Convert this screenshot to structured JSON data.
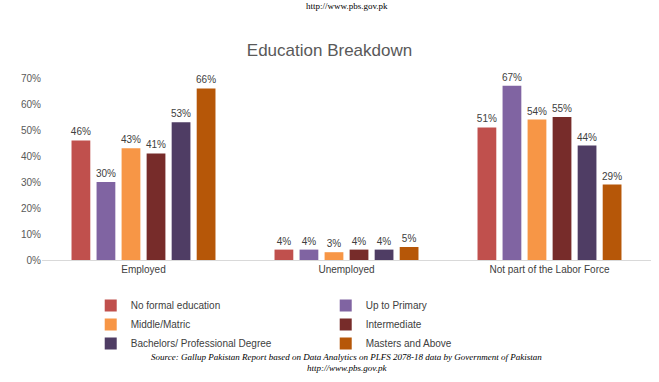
{
  "chart_data": {
    "type": "bar",
    "title": "Education Breakdown",
    "header": "http://www.pbs.gov.pk",
    "source": [
      "Source: Gallup Pakistan Report based on Data Analytics on PLFS 2078-18 data by Government of Pakistan",
      "http://www.pbs.gov.pk"
    ],
    "categories": [
      "Employed",
      "Unemployed",
      "Not part of the Labor Force"
    ],
    "series": [
      {
        "name": "No formal education",
        "color": "#c0504d",
        "values": [
          46,
          4,
          51
        ],
        "value_labels": [
          "46%",
          "4%",
          "51%"
        ]
      },
      {
        "name": "Up to Primary",
        "color": "#8064a2",
        "values": [
          30,
          4,
          67
        ],
        "value_labels": [
          "30%",
          "4%",
          "67%"
        ]
      },
      {
        "name": "Middle/Matric",
        "color": "#f79646",
        "values": [
          43,
          3,
          54
        ],
        "value_labels": [
          "43%",
          "3%",
          "54%"
        ]
      },
      {
        "name": "Intermediate",
        "color": "#772c2a",
        "values": [
          41,
          4,
          55
        ],
        "value_labels": [
          "41%",
          "4%",
          "55%"
        ]
      },
      {
        "name": "Bachelors/ Professional Degree",
        "color": "#4f3d64",
        "values": [
          53,
          4,
          44
        ],
        "value_labels": [
          "53%",
          "4%",
          "44%"
        ]
      },
      {
        "name": "Masters and Above",
        "color": "#b65708",
        "values": [
          66,
          5,
          29
        ],
        "value_labels": [
          "66%",
          "5%",
          "29%"
        ]
      }
    ],
    "ylim": [
      0,
      70
    ],
    "yticks": [
      {
        "value": 0,
        "label": "0%"
      },
      {
        "value": 10,
        "label": "10%"
      },
      {
        "value": 20,
        "label": "20%"
      },
      {
        "value": 30,
        "label": "30%"
      },
      {
        "value": 40,
        "label": "40%"
      },
      {
        "value": 50,
        "label": "50%"
      },
      {
        "value": 60,
        "label": "60%"
      },
      {
        "value": 70,
        "label": "70%"
      }
    ],
    "grid": false,
    "legend": "bottom",
    "data_labels": true
  }
}
